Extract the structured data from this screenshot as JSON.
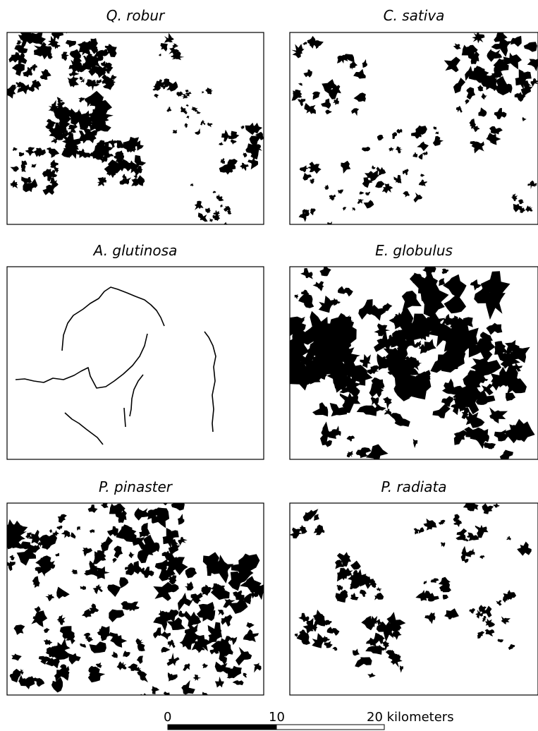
{
  "panels": [
    {
      "title": "Q. robur"
    },
    {
      "title": "C. sativa"
    },
    {
      "title": "A. glutinosa"
    },
    {
      "title": "E. globulus"
    },
    {
      "title": "P. pinaster"
    },
    {
      "title": "P. radiata"
    }
  ],
  "scale_bar": {
    "labels": [
      "0",
      "10",
      "20 kilometers"
    ]
  }
}
